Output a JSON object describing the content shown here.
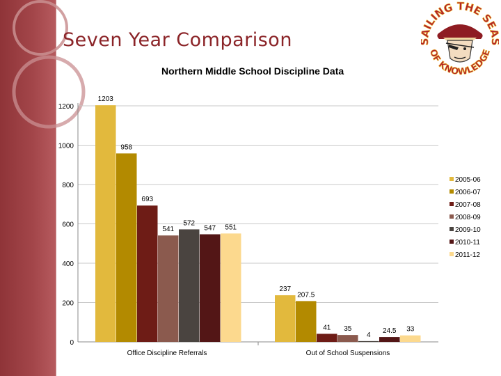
{
  "slide": {
    "title": "Seven Year Comparison",
    "accent_color": "#8b2428"
  },
  "logo": {
    "icon": "pirate-mascot-icon",
    "text_top": "SAILING THE SEAS",
    "text_bottom": "OF KNOWLEDGE"
  },
  "chart_data": {
    "type": "bar",
    "title": "Northern Middle School Discipline Data",
    "categories": [
      "Office Discipline Referrals",
      "Out of School Suspensions"
    ],
    "series": [
      {
        "name": "2005-06",
        "color": "#e2b93d",
        "values": [
          1203,
          237
        ],
        "labels": [
          "1203",
          "237"
        ]
      },
      {
        "name": "2006-07",
        "color": "#b38a00",
        "values": [
          958,
          207.5
        ],
        "labels": [
          "958",
          "207.5"
        ]
      },
      {
        "name": "2007-08",
        "color": "#6e1c16",
        "values": [
          693,
          41
        ],
        "labels": [
          "693",
          "41"
        ]
      },
      {
        "name": "2008-09",
        "color": "#8b5a4e",
        "values": [
          541,
          35
        ],
        "labels": [
          "541",
          "35"
        ]
      },
      {
        "name": "2009-10",
        "color": "#4a4440",
        "values": [
          572,
          4
        ],
        "labels": [
          "572",
          "4"
        ]
      },
      {
        "name": "2010-11",
        "color": "#531616",
        "values": [
          547,
          24.5
        ],
        "labels": [
          "547",
          "24.5"
        ]
      },
      {
        "name": "2011-12",
        "color": "#fcd98e",
        "values": [
          551,
          33
        ],
        "labels": [
          "551",
          "33"
        ]
      }
    ],
    "y_ticks": [
      "0",
      "200",
      "400",
      "600",
      "800",
      "1000",
      "1200"
    ],
    "ylim": [
      0,
      1300
    ],
    "grid": true,
    "legend_position": "right"
  }
}
